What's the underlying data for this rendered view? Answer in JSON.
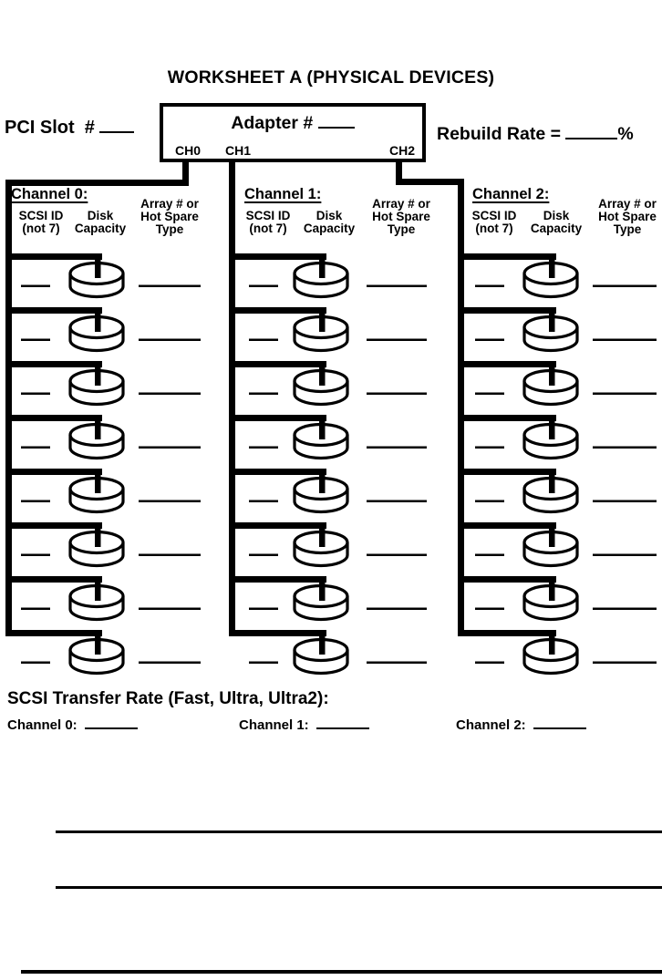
{
  "page_title": "WORKSHEET A (PHYSICAL DEVICES)",
  "top": {
    "pci_slot_label": "PCI Slot  # ",
    "pci_slot_value": "",
    "adapter_label": "Adapter # ",
    "adapter_value": "",
    "adapter_ports": [
      "CH0",
      "CH1",
      "CH2"
    ],
    "rebuild_rate_label": "Rebuild Rate = ",
    "rebuild_rate_value": "",
    "rebuild_rate_unit": "%"
  },
  "channel_headers": {
    "scsi": [
      "SCSI ID",
      "(not 7)"
    ],
    "disk": [
      "Disk",
      "Capacity"
    ],
    "array": [
      "Array # or",
      "Hot Spare",
      "Type"
    ]
  },
  "channels": [
    {
      "label": "Channel 0:",
      "port": "CH0",
      "rows": 8
    },
    {
      "label": "Channel 1:",
      "port": "CH1",
      "rows": 8
    },
    {
      "label": "Channel 2:",
      "port": "CH2",
      "rows": 8
    }
  ],
  "row_fields": [
    "scsi_id_blank",
    "disk_capacity_icon",
    "array_or_hot_spare_blank"
  ],
  "transfer_rate": {
    "heading": "SCSI Transfer Rate (Fast, Ultra, Ultra2):",
    "items": [
      {
        "label": "Channel 0:",
        "value": ""
      },
      {
        "label": "Channel 1:",
        "value": ""
      },
      {
        "label": "Channel 2:",
        "value": ""
      }
    ]
  }
}
